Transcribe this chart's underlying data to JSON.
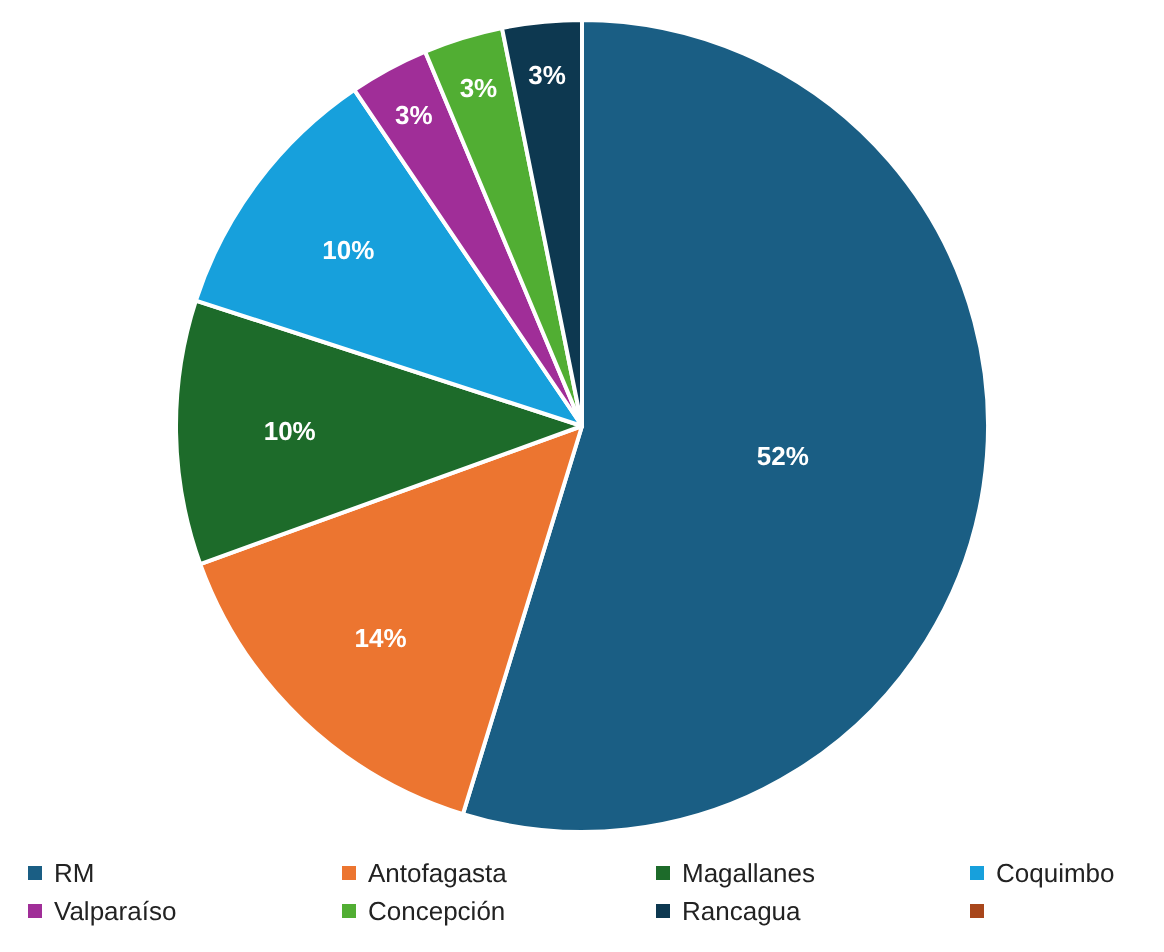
{
  "chart_data": {
    "type": "pie",
    "categories": [
      "RM",
      "Antofagasta",
      "Magallanes",
      "Coquimbo",
      "Valparaíso",
      "Concepción",
      "Rancagua",
      null
    ],
    "values": [
      52,
      14,
      10,
      10,
      3,
      3,
      3,
      0
    ],
    "value_labels": [
      "52%",
      "14%",
      "10%",
      "10%",
      "3%",
      "3%",
      "3%",
      null
    ],
    "colors": [
      "#1a5e84",
      "#ec7530",
      "#1d6b2a",
      "#17a0dc",
      "#a02e98",
      "#51ae33",
      "#0d3850",
      "#a8461b"
    ],
    "legend": "bottom"
  }
}
